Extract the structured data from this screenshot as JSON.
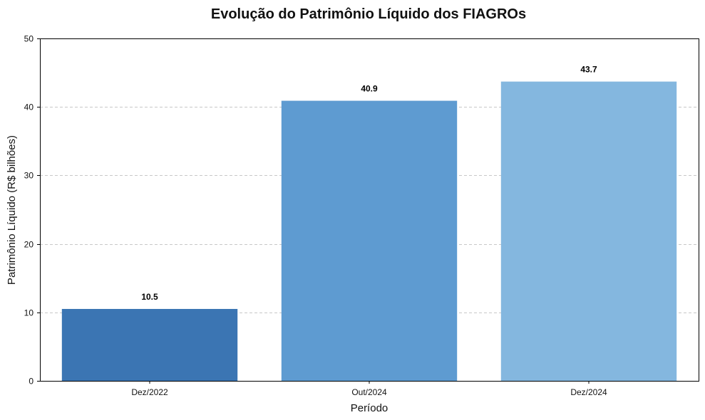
{
  "chart_data": {
    "type": "bar",
    "title": "Evolução do Patrimônio Líquido dos FIAGROs",
    "xlabel": "Período",
    "ylabel": "Patrimônio Líquido (R$ bilhões)",
    "categories": [
      "Dez/2022",
      "Out/2024",
      "Dez/2024"
    ],
    "values": [
      10.5,
      40.9,
      43.7
    ],
    "value_labels": [
      "10.5",
      "40.9",
      "43.7"
    ],
    "bar_colors": [
      "#3b75b3",
      "#5e9bd1",
      "#84b7df"
    ],
    "ylim": [
      0,
      50
    ],
    "yticks": [
      0,
      10,
      20,
      30,
      40,
      50
    ],
    "grid": "y-dashed",
    "legend": "none"
  }
}
